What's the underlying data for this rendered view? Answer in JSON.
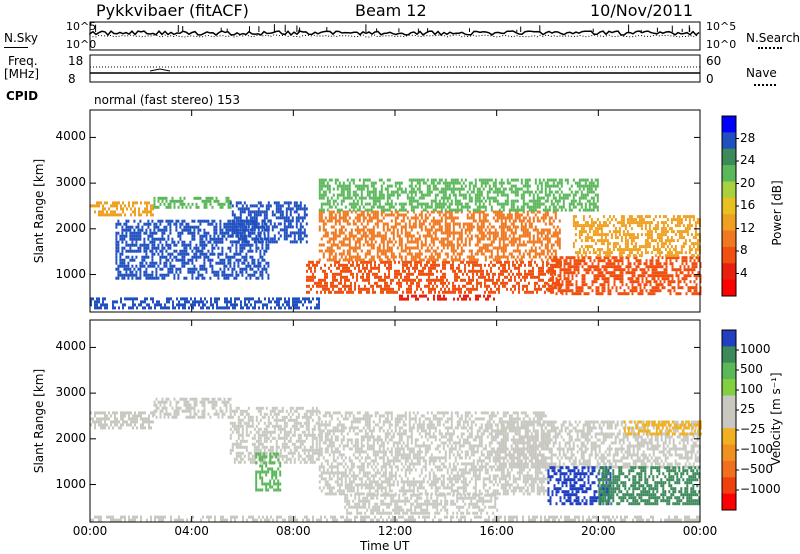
{
  "header": {
    "station": "Pykkvibaer (fitACF)",
    "beam": "Beam 12",
    "date": "10/Nov/2011"
  },
  "top_strips": {
    "nsky_label": "N.Sky",
    "nsearch_label": "N.Search",
    "nsky_tick_high": "10^5",
    "nsky_tick_low": "10^0",
    "freq_label": "Freq.",
    "freq_unit": "[MHz]",
    "freq_tick_high": "18",
    "freq_tick_low": "8",
    "nave_label": "Nave",
    "nave_tick_high": "60",
    "nave_tick_low": "0",
    "cpid_label": "CPID",
    "cpid_value": "normal (fast stereo) 153"
  },
  "chart_data": [
    {
      "type": "heatmap",
      "name": "power",
      "ylabel": "Slant Range [km]",
      "ylim": [
        180,
        4600
      ],
      "yticks": [
        "1000",
        "2000",
        "3000",
        "4000"
      ],
      "yticks_values": [
        1000,
        2000,
        3000,
        4000
      ],
      "xlim_hours": [
        0,
        24
      ],
      "colorbar": {
        "label": "Power [dB]",
        "ticks": [
          "4",
          "8",
          "12",
          "16",
          "20",
          "24",
          "28"
        ],
        "colors": [
          "#0000ff",
          "#2050c0",
          "#3c8a5a",
          "#5ab85a",
          "#a8d040",
          "#e8c020",
          "#f0a020",
          "#f07820",
          "#f05010",
          "#e82010",
          "#ff0000"
        ]
      },
      "bands": [
        {
          "t0": 0.0,
          "t1": 2.5,
          "r0": 2300,
          "r1": 2600,
          "color": "#f0a020"
        },
        {
          "t0": 2.5,
          "t1": 5.5,
          "r0": 2450,
          "r1": 2700,
          "color": "#5ab85a"
        },
        {
          "t0": 5.5,
          "t1": 8.5,
          "r0": 1700,
          "r1": 2600,
          "color": "#2050c0"
        },
        {
          "t0": 0.0,
          "t1": 9.0,
          "r0": 300,
          "r1": 500,
          "color": "#2050c0"
        },
        {
          "t0": 8.5,
          "t1": 18.5,
          "r0": 600,
          "r1": 1300,
          "color": "#f05010"
        },
        {
          "t0": 9.0,
          "t1": 18.5,
          "r0": 1300,
          "r1": 2400,
          "color": "#f07820"
        },
        {
          "t0": 9.0,
          "t1": 20.0,
          "r0": 2400,
          "r1": 3100,
          "color": "#5ab85a"
        },
        {
          "t0": 12.0,
          "t1": 16.0,
          "r0": 430,
          "r1": 560,
          "color": "#e82010"
        },
        {
          "t0": 18.0,
          "t1": 24.0,
          "r0": 600,
          "r1": 1400,
          "color": "#f05010"
        },
        {
          "t0": 19.0,
          "t1": 24.0,
          "r0": 1400,
          "r1": 2300,
          "color": "#f0a020"
        },
        {
          "t0": 1.0,
          "t1": 7.0,
          "r0": 900,
          "r1": 2200,
          "color": "#2050c0"
        }
      ]
    },
    {
      "type": "heatmap",
      "name": "velocity",
      "ylabel": "Slant Range [km]",
      "xlabel": "Time UT",
      "ylim": [
        180,
        4600
      ],
      "yticks": [
        "1000",
        "2000",
        "3000",
        "4000"
      ],
      "yticks_values": [
        1000,
        2000,
        3000,
        4000
      ],
      "xlim_hours": [
        0,
        24
      ],
      "xticks": [
        "00:00",
        "04:00",
        "08:00",
        "12:00",
        "16:00",
        "20:00",
        "00:00"
      ],
      "xticks_hours": [
        0,
        4,
        8,
        12,
        16,
        20,
        24
      ],
      "colorbar": {
        "label": "Velocity [m s⁻¹]",
        "ticks": [
          "1000",
          "500",
          "100",
          "25",
          "−25",
          "−100",
          "−500",
          "−1000"
        ],
        "colors": [
          "#2040c0",
          "#3c8a5a",
          "#5ab85a",
          "#80d040",
          "#c8c8c0",
          "#c8c8c0",
          "#f0b020",
          "#f09020",
          "#f07020",
          "#f04010",
          "#ff0000"
        ]
      },
      "bands": [
        {
          "t0": 0.0,
          "t1": 2.5,
          "r0": 2250,
          "r1": 2600,
          "color": "#c8c8c0"
        },
        {
          "t0": 2.5,
          "t1": 5.5,
          "r0": 2500,
          "r1": 2900,
          "color": "#c8c8c0"
        },
        {
          "t0": 5.5,
          "t1": 9.0,
          "r0": 1500,
          "r1": 2700,
          "color": "#c8c8c0"
        },
        {
          "t0": 9.0,
          "t1": 18.0,
          "r0": 800,
          "r1": 2600,
          "color": "#c8c8c0"
        },
        {
          "t0": 10.0,
          "t1": 16.0,
          "r0": 400,
          "r1": 800,
          "color": "#c8c8c0"
        },
        {
          "t0": 16.0,
          "t1": 24.0,
          "r0": 1400,
          "r1": 2400,
          "color": "#c8c8c0"
        },
        {
          "t0": 18.0,
          "t1": 20.5,
          "r0": 600,
          "r1": 1400,
          "color": "#2040c0"
        },
        {
          "t0": 20.0,
          "t1": 24.0,
          "r0": 600,
          "r1": 1400,
          "color": "#3c8a5a"
        },
        {
          "t0": 6.5,
          "t1": 7.5,
          "r0": 900,
          "r1": 1700,
          "color": "#5ab85a"
        },
        {
          "t0": 0.0,
          "t1": 24.0,
          "r0": 220,
          "r1": 320,
          "color": "#c8c8c0"
        },
        {
          "t0": 21.0,
          "t1": 24.0,
          "r0": 2100,
          "r1": 2400,
          "color": "#f0b020"
        }
      ]
    }
  ]
}
